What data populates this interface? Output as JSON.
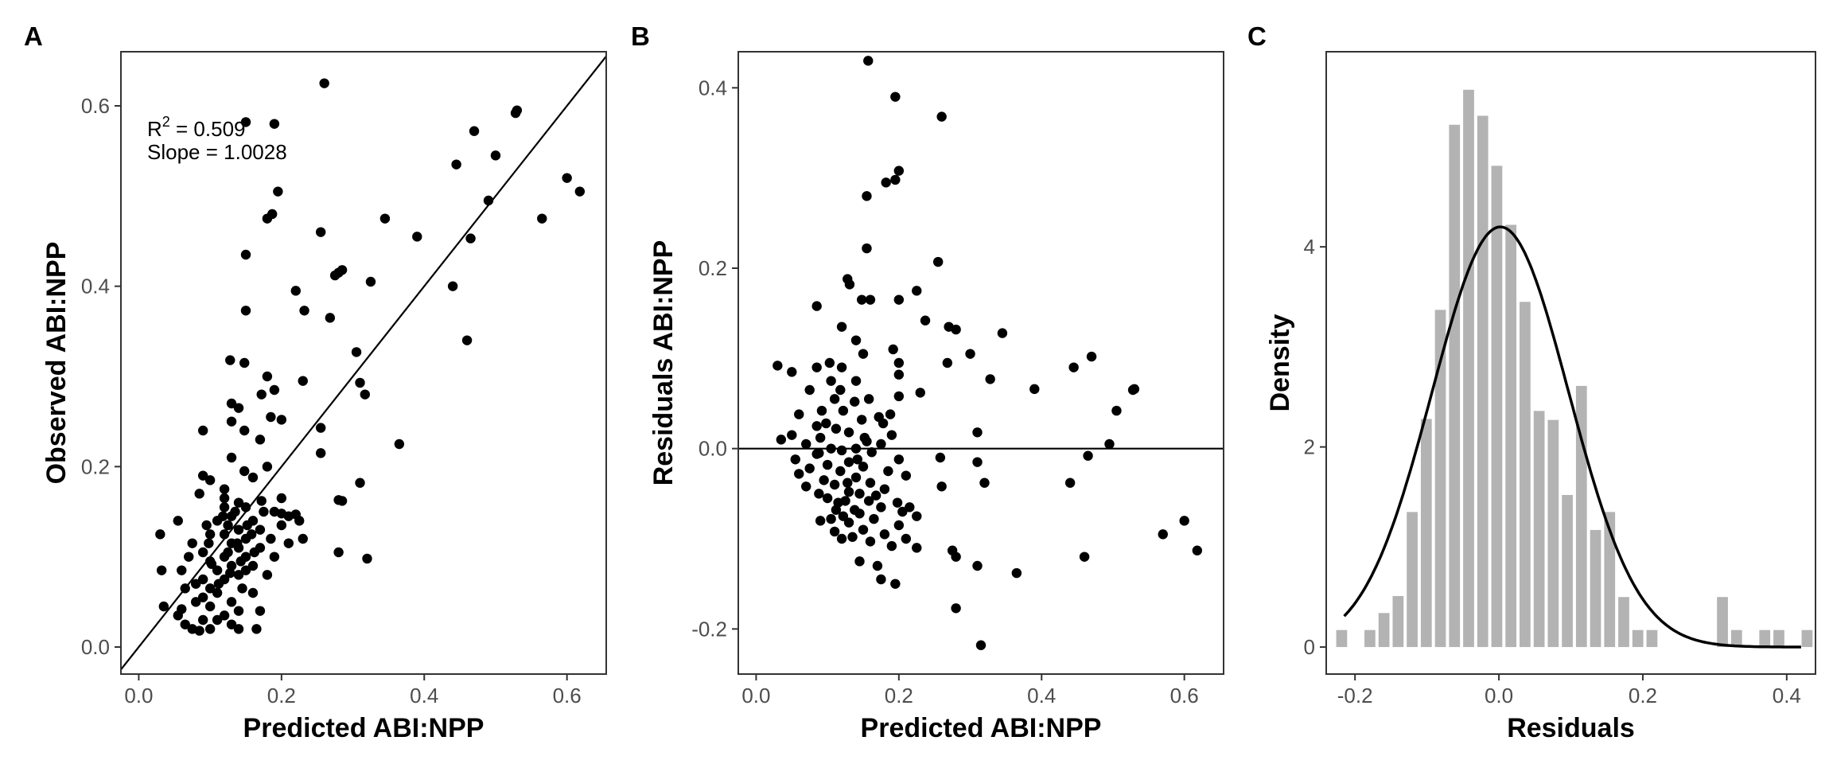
{
  "chart_data": [
    {
      "panel": "A",
      "type": "scatter",
      "xlabel": "Predicted ABI:NPP",
      "ylabel": "Observed ABI:NPP",
      "xlim": [
        -0.025,
        0.655
      ],
      "ylim": [
        -0.03,
        0.66
      ],
      "xticks": [
        "0.0",
        "0.2",
        "0.4",
        "0.6"
      ],
      "yticks": [
        "0.0",
        "0.2",
        "0.4",
        "0.6"
      ],
      "annotation": {
        "r2_label": "R",
        "r2_sup": "2",
        "r2_value": " = 0.509",
        "slope": "Slope = 1.0028"
      },
      "reference_line": {
        "type": "identity",
        "slope": 1,
        "intercept": 0
      },
      "points": [
        [
          0.26,
          0.625
        ],
        [
          0.15,
          0.582
        ],
        [
          0.19,
          0.58
        ],
        [
          0.53,
          0.595
        ],
        [
          0.528,
          0.592
        ],
        [
          0.47,
          0.572
        ],
        [
          0.195,
          0.505
        ],
        [
          0.445,
          0.535
        ],
        [
          0.5,
          0.545
        ],
        [
          0.6,
          0.52
        ],
        [
          0.618,
          0.505
        ],
        [
          0.49,
          0.495
        ],
        [
          0.565,
          0.475
        ],
        [
          0.18,
          0.475
        ],
        [
          0.187,
          0.48
        ],
        [
          0.345,
          0.475
        ],
        [
          0.39,
          0.455
        ],
        [
          0.465,
          0.453
        ],
        [
          0.255,
          0.46
        ],
        [
          0.15,
          0.435
        ],
        [
          0.28,
          0.415
        ],
        [
          0.275,
          0.412
        ],
        [
          0.285,
          0.418
        ],
        [
          0.325,
          0.405
        ],
        [
          0.44,
          0.4
        ],
        [
          0.22,
          0.395
        ],
        [
          0.232,
          0.373
        ],
        [
          0.15,
          0.373
        ],
        [
          0.268,
          0.365
        ],
        [
          0.46,
          0.34
        ],
        [
          0.305,
          0.327
        ],
        [
          0.128,
          0.318
        ],
        [
          0.148,
          0.315
        ],
        [
          0.31,
          0.293
        ],
        [
          0.18,
          0.3
        ],
        [
          0.23,
          0.295
        ],
        [
          0.317,
          0.28
        ],
        [
          0.19,
          0.285
        ],
        [
          0.172,
          0.28
        ],
        [
          0.13,
          0.27
        ],
        [
          0.14,
          0.265
        ],
        [
          0.185,
          0.255
        ],
        [
          0.2,
          0.252
        ],
        [
          0.255,
          0.243
        ],
        [
          0.13,
          0.25
        ],
        [
          0.148,
          0.24
        ],
        [
          0.09,
          0.24
        ],
        [
          0.365,
          0.225
        ],
        [
          0.17,
          0.23
        ],
        [
          0.255,
          0.215
        ],
        [
          0.13,
          0.21
        ],
        [
          0.18,
          0.2
        ],
        [
          0.148,
          0.195
        ],
        [
          0.09,
          0.19
        ],
        [
          0.1,
          0.185
        ],
        [
          0.16,
          0.188
        ],
        [
          0.31,
          0.182
        ],
        [
          0.12,
          0.175
        ],
        [
          0.085,
          0.17
        ],
        [
          0.2,
          0.165
        ],
        [
          0.28,
          0.163
        ],
        [
          0.285,
          0.162
        ],
        [
          0.12,
          0.165
        ],
        [
          0.14,
          0.16
        ],
        [
          0.172,
          0.162
        ],
        [
          0.12,
          0.155
        ],
        [
          0.15,
          0.155
        ],
        [
          0.135,
          0.15
        ],
        [
          0.19,
          0.15
        ],
        [
          0.2,
          0.148
        ],
        [
          0.21,
          0.145
        ],
        [
          0.22,
          0.147
        ],
        [
          0.13,
          0.145
        ],
        [
          0.16,
          0.14
        ],
        [
          0.11,
          0.14
        ],
        [
          0.055,
          0.14
        ],
        [
          0.125,
          0.135
        ],
        [
          0.14,
          0.13
        ],
        [
          0.17,
          0.13
        ],
        [
          0.2,
          0.135
        ],
        [
          0.225,
          0.14
        ],
        [
          0.03,
          0.125
        ],
        [
          0.1,
          0.125
        ],
        [
          0.12,
          0.125
        ],
        [
          0.15,
          0.12
        ],
        [
          0.185,
          0.12
        ],
        [
          0.23,
          0.12
        ],
        [
          0.21,
          0.115
        ],
        [
          0.13,
          0.115
        ],
        [
          0.075,
          0.115
        ],
        [
          0.14,
          0.11
        ],
        [
          0.17,
          0.11
        ],
        [
          0.09,
          0.105
        ],
        [
          0.28,
          0.105
        ],
        [
          0.32,
          0.098
        ],
        [
          0.12,
          0.1
        ],
        [
          0.15,
          0.1
        ],
        [
          0.19,
          0.1
        ],
        [
          0.07,
          0.1
        ],
        [
          0.1,
          0.095
        ],
        [
          0.13,
          0.09
        ],
        [
          0.16,
          0.09
        ],
        [
          0.11,
          0.085
        ],
        [
          0.06,
          0.085
        ],
        [
          0.032,
          0.085
        ],
        [
          0.14,
          0.08
        ],
        [
          0.18,
          0.08
        ],
        [
          0.09,
          0.075
        ],
        [
          0.12,
          0.075
        ],
        [
          0.08,
          0.07
        ],
        [
          0.1,
          0.065
        ],
        [
          0.145,
          0.065
        ],
        [
          0.065,
          0.065
        ],
        [
          0.16,
          0.06
        ],
        [
          0.11,
          0.06
        ],
        [
          0.09,
          0.055
        ],
        [
          0.13,
          0.05
        ],
        [
          0.08,
          0.05
        ],
        [
          0.1,
          0.045
        ],
        [
          0.06,
          0.042
        ],
        [
          0.035,
          0.045
        ],
        [
          0.14,
          0.04
        ],
        [
          0.17,
          0.04
        ],
        [
          0.12,
          0.035
        ],
        [
          0.09,
          0.03
        ],
        [
          0.11,
          0.03
        ],
        [
          0.13,
          0.025
        ],
        [
          0.065,
          0.025
        ],
        [
          0.055,
          0.035
        ],
        [
          0.14,
          0.02
        ],
        [
          0.085,
          0.018
        ],
        [
          0.1,
          0.02
        ],
        [
          0.165,
          0.02
        ],
        [
          0.075,
          0.02
        ],
        [
          0.15,
          0.085
        ],
        [
          0.125,
          0.105
        ],
        [
          0.138,
          0.115
        ],
        [
          0.158,
          0.125
        ],
        [
          0.112,
          0.07
        ],
        [
          0.098,
          0.115
        ],
        [
          0.152,
          0.135
        ],
        [
          0.118,
          0.145
        ],
        [
          0.162,
          0.105
        ],
        [
          0.143,
          0.095
        ],
        [
          0.128,
          0.082
        ],
        [
          0.102,
          0.092
        ],
        [
          0.175,
          0.15
        ],
        [
          0.095,
          0.135
        ]
      ]
    },
    {
      "panel": "B",
      "type": "scatter",
      "xlabel": "Predicted ABI:NPP",
      "ylabel": "Residuals ABI:NPP",
      "xlim": [
        -0.025,
        0.655
      ],
      "ylim": [
        -0.25,
        0.44
      ],
      "xticks": [
        "0.0",
        "0.2",
        "0.4",
        "0.6"
      ],
      "yticks": [
        "-0.2",
        "0.0",
        "0.2",
        "0.4"
      ],
      "reference_line": {
        "type": "horizontal",
        "y": 0
      },
      "points": [
        [
          0.157,
          0.43
        ],
        [
          0.195,
          0.39
        ],
        [
          0.26,
          0.368
        ],
        [
          0.2,
          0.308
        ],
        [
          0.195,
          0.298
        ],
        [
          0.182,
          0.295
        ],
        [
          0.155,
          0.28
        ],
        [
          0.155,
          0.222
        ],
        [
          0.255,
          0.207
        ],
        [
          0.128,
          0.188
        ],
        [
          0.131,
          0.182
        ],
        [
          0.2,
          0.165
        ],
        [
          0.148,
          0.165
        ],
        [
          0.16,
          0.165
        ],
        [
          0.225,
          0.175
        ],
        [
          0.085,
          0.158
        ],
        [
          0.237,
          0.142
        ],
        [
          0.27,
          0.135
        ],
        [
          0.28,
          0.132
        ],
        [
          0.345,
          0.128
        ],
        [
          0.12,
          0.135
        ],
        [
          0.14,
          0.12
        ],
        [
          0.192,
          0.11
        ],
        [
          0.15,
          0.105
        ],
        [
          0.3,
          0.105
        ],
        [
          0.47,
          0.102
        ],
        [
          0.103,
          0.095
        ],
        [
          0.2,
          0.095
        ],
        [
          0.268,
          0.095
        ],
        [
          0.03,
          0.092
        ],
        [
          0.445,
          0.09
        ],
        [
          0.085,
          0.09
        ],
        [
          0.12,
          0.09
        ],
        [
          0.05,
          0.085
        ],
        [
          0.2,
          0.082
        ],
        [
          0.328,
          0.077
        ],
        [
          0.14,
          0.075
        ],
        [
          0.105,
          0.075
        ],
        [
          0.39,
          0.066
        ],
        [
          0.528,
          0.065
        ],
        [
          0.53,
          0.066
        ],
        [
          0.23,
          0.062
        ],
        [
          0.075,
          0.065
        ],
        [
          0.2,
          0.058
        ],
        [
          0.158,
          0.055
        ],
        [
          0.11,
          0.055
        ],
        [
          0.138,
          0.052
        ],
        [
          0.505,
          0.042
        ],
        [
          0.092,
          0.042
        ],
        [
          0.122,
          0.042
        ],
        [
          0.06,
          0.038
        ],
        [
          0.188,
          0.038
        ],
        [
          0.172,
          0.035
        ],
        [
          0.148,
          0.032
        ],
        [
          0.085,
          0.025
        ],
        [
          0.112,
          0.022
        ],
        [
          0.31,
          0.018
        ],
        [
          0.13,
          0.018
        ],
        [
          0.05,
          0.015
        ],
        [
          0.19,
          0.015
        ],
        [
          0.09,
          0.012
        ],
        [
          0.035,
          0.01
        ],
        [
          0.155,
          0.008
        ],
        [
          0.495,
          0.005
        ],
        [
          0.07,
          0.005
        ],
        [
          0.175,
          0.005
        ],
        [
          0.105,
          0.0
        ],
        [
          0.14,
          0.0
        ],
        [
          0.12,
          -0.002
        ],
        [
          0.162,
          -0.004
        ],
        [
          0.085,
          -0.006
        ],
        [
          0.465,
          -0.008
        ],
        [
          0.258,
          -0.01
        ],
        [
          0.31,
          -0.015
        ],
        [
          0.055,
          -0.012
        ],
        [
          0.2,
          -0.012
        ],
        [
          0.13,
          -0.015
        ],
        [
          0.1,
          -0.018
        ],
        [
          0.15,
          -0.02
        ],
        [
          0.075,
          -0.022
        ],
        [
          0.185,
          -0.025
        ],
        [
          0.118,
          -0.025
        ],
        [
          0.06,
          -0.028
        ],
        [
          0.21,
          -0.03
        ],
        [
          0.14,
          -0.032
        ],
        [
          0.095,
          -0.035
        ],
        [
          0.44,
          -0.038
        ],
        [
          0.32,
          -0.038
        ],
        [
          0.16,
          -0.038
        ],
        [
          0.11,
          -0.04
        ],
        [
          0.26,
          -0.042
        ],
        [
          0.07,
          -0.042
        ],
        [
          0.18,
          -0.045
        ],
        [
          0.13,
          -0.048
        ],
        [
          0.145,
          -0.05
        ],
        [
          0.088,
          -0.05
        ],
        [
          0.1,
          -0.055
        ],
        [
          0.125,
          -0.058
        ],
        [
          0.158,
          -0.058
        ],
        [
          0.198,
          -0.06
        ],
        [
          0.215,
          -0.065
        ],
        [
          0.175,
          -0.065
        ],
        [
          0.138,
          -0.068
        ],
        [
          0.112,
          -0.068
        ],
        [
          0.205,
          -0.07
        ],
        [
          0.145,
          -0.072
        ],
        [
          0.122,
          -0.075
        ],
        [
          0.225,
          -0.075
        ],
        [
          0.165,
          -0.078
        ],
        [
          0.09,
          -0.08
        ],
        [
          0.6,
          -0.08
        ],
        [
          0.13,
          -0.082
        ],
        [
          0.2,
          -0.085
        ],
        [
          0.15,
          -0.09
        ],
        [
          0.11,
          -0.092
        ],
        [
          0.57,
          -0.095
        ],
        [
          0.18,
          -0.095
        ],
        [
          0.135,
          -0.098
        ],
        [
          0.12,
          -0.1
        ],
        [
          0.21,
          -0.1
        ],
        [
          0.16,
          -0.103
        ],
        [
          0.19,
          -0.108
        ],
        [
          0.618,
          -0.113
        ],
        [
          0.225,
          -0.11
        ],
        [
          0.275,
          -0.113
        ],
        [
          0.46,
          -0.12
        ],
        [
          0.28,
          -0.12
        ],
        [
          0.145,
          -0.125
        ],
        [
          0.17,
          -0.13
        ],
        [
          0.31,
          -0.13
        ],
        [
          0.365,
          -0.138
        ],
        [
          0.175,
          -0.145
        ],
        [
          0.195,
          -0.15
        ],
        [
          0.28,
          -0.177
        ],
        [
          0.315,
          -0.218
        ],
        [
          0.115,
          -0.06
        ],
        [
          0.142,
          -0.012
        ],
        [
          0.098,
          0.028
        ],
        [
          0.168,
          -0.052
        ],
        [
          0.105,
          -0.078
        ],
        [
          0.152,
          0.012
        ],
        [
          0.128,
          -0.038
        ],
        [
          0.088,
          -0.005
        ],
        [
          0.178,
          0.028
        ],
        [
          0.118,
          0.065
        ]
      ]
    },
    {
      "panel": "C",
      "type": "histogram",
      "xlabel": "Residuals",
      "ylabel": "Density",
      "xlim": [
        -0.24,
        0.44
      ],
      "ylim": [
        -0.27,
        5.95
      ],
      "xticks": [
        "-0.2",
        "0.0",
        "0.2",
        "0.4"
      ],
      "yticks": [
        "0",
        "2",
        "4"
      ],
      "bin_width": 0.0196,
      "bins_start": -0.2283,
      "density": [
        0.17,
        0,
        0.17,
        0.34,
        0.51,
        1.35,
        2.28,
        3.37,
        5.22,
        5.57,
        5.31,
        4.81,
        4.22,
        3.45,
        2.36,
        2.27,
        1.52,
        2.61,
        1.17,
        1.35,
        0.5,
        0.17,
        0.17,
        0,
        0,
        0,
        0,
        0.5,
        0.17,
        0,
        0.17,
        0.17,
        0,
        0.17
      ],
      "density_curve": {
        "type": "normal",
        "mean": 0.002,
        "sd": 0.095
      }
    }
  ]
}
